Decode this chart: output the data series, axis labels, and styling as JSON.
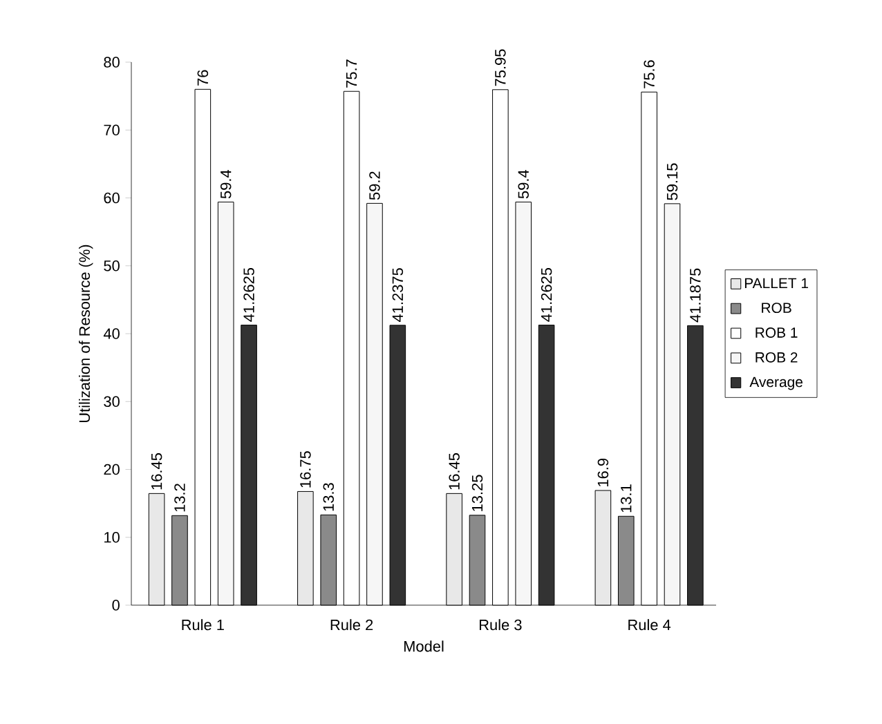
{
  "chart_data": {
    "type": "bar",
    "xlabel": "Model",
    "ylabel": "Utilization of Resource (%)",
    "categories": [
      "Rule 1",
      "Rule 2",
      "Rule 3",
      "Rule 4"
    ],
    "series": [
      {
        "name": "PALLET 1",
        "color": "#e8e8e8",
        "values": [
          16.45,
          16.75,
          16.45,
          16.9
        ]
      },
      {
        "name": "ROB",
        "color": "#8a8a8a",
        "values": [
          13.2,
          13.3,
          13.25,
          13.1
        ]
      },
      {
        "name": "ROB 1",
        "color": "#ffffff",
        "values": [
          76,
          75.7,
          75.95,
          75.6
        ]
      },
      {
        "name": "ROB 2",
        "color": "#f6f6f6",
        "values": [
          59.4,
          59.2,
          59.4,
          59.15
        ]
      },
      {
        "name": "Average",
        "color": "#333333",
        "values": [
          41.2625,
          41.2375,
          41.2625,
          41.1875
        ]
      }
    ],
    "ylim": [
      0,
      80
    ],
    "yticks": [
      0,
      10,
      20,
      30,
      40,
      50,
      60,
      70,
      80
    ],
    "data_labels": true,
    "legend": "right",
    "grid": false
  }
}
